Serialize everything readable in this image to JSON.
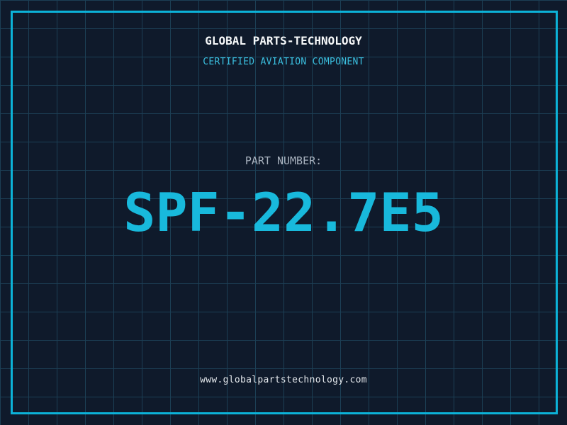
{
  "header": {
    "company": "GLOBAL PARTS-TECHNOLOGY",
    "certification": "CERTIFIED AVIATION COMPONENT"
  },
  "part": {
    "label": "PART NUMBER:",
    "number": "SPF-22.7E5"
  },
  "footer": {
    "website": "www.globalpartstechnology.com"
  },
  "colors": {
    "background": "#0f1a2b",
    "grid_line": "#1c3f55",
    "border": "#0cb2d8",
    "accent_cyan": "#18b9dc",
    "subtitle_cyan": "#3bc0e0",
    "title_white": "#f7f9fa",
    "label_gray": "#a9b3bf",
    "url_white": "#e4e8ec"
  }
}
